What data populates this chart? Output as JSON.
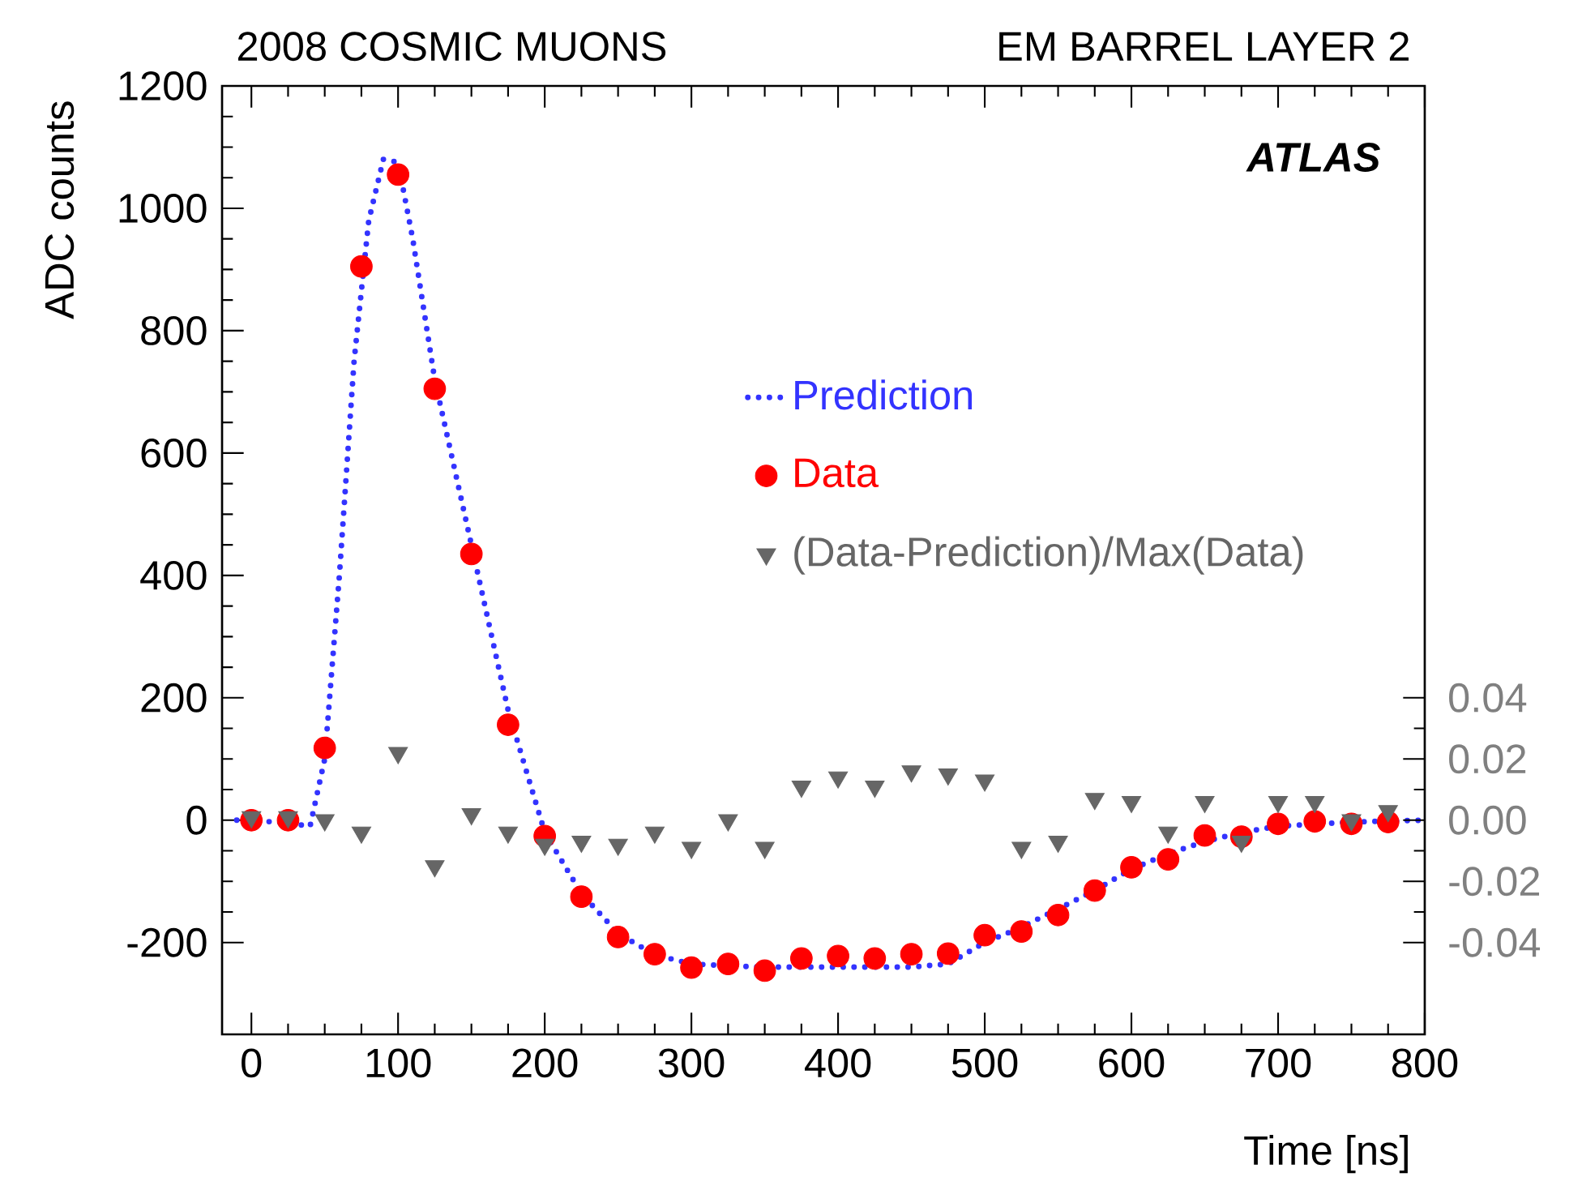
{
  "chart_data": {
    "type": "scatter",
    "title": "2008 COSMIC MUONS",
    "subtitle": "EM BARREL LAYER 2",
    "xlabel": "Time [ns]",
    "ylabel": "ADC counts",
    "annotations": [
      "ATLAS"
    ],
    "xlim": [
      -20,
      800
    ],
    "xticks": [
      0,
      100,
      200,
      300,
      400,
      500,
      600,
      700,
      800
    ],
    "ylim": [
      -350,
      1200
    ],
    "yticks": [
      -200,
      0,
      200,
      400,
      600,
      800,
      1000,
      1200
    ],
    "y2lim": [
      -0.07,
      0.24
    ],
    "y2ticks": [
      -0.04,
      -0.02,
      {
        "value": 0,
        "label": "0.00"
      },
      0.02,
      0.04
    ],
    "legend": "top right",
    "series": [
      {
        "name": "Prediction",
        "type": "line",
        "color": "#3333ff",
        "line_style": "dotted",
        "marker": "none",
        "x": [
          -10,
          0,
          25,
          40,
          50,
          60,
          70,
          80,
          90,
          100,
          110,
          125,
          150,
          175,
          200,
          225,
          250,
          275,
          300,
          325,
          350,
          400,
          450,
          475,
          500,
          525,
          550,
          575,
          600,
          625,
          650,
          675,
          700,
          750,
          800
        ],
        "values": [
          0,
          0,
          -5,
          -10,
          100,
          400,
          750,
          980,
          1080,
          1075,
          950,
          720,
          450,
          180,
          -20,
          -120,
          -185,
          -220,
          -235,
          -238,
          -240,
          -240,
          -240,
          -235,
          -200,
          -175,
          -145,
          -115,
          -80,
          -55,
          -35,
          -20,
          -10,
          -3,
          0
        ]
      },
      {
        "name": "Data",
        "color": "#ff0000",
        "marker": "circle",
        "x": [
          0,
          25,
          50,
          75,
          100,
          125,
          150,
          175,
          200,
          225,
          250,
          275,
          300,
          325,
          350,
          375,
          400,
          425,
          450,
          475,
          500,
          525,
          550,
          575,
          600,
          625,
          650,
          675,
          700,
          725,
          750,
          775
        ],
        "values": [
          0,
          0,
          118,
          905,
          1055,
          705,
          435,
          156,
          -26,
          -125,
          -191,
          -219,
          -241,
          -235,
          -246,
          -226,
          -222,
          -226,
          -219,
          -218,
          -188,
          -182,
          -155,
          -115,
          -77,
          -64,
          -25,
          -27,
          -6,
          -2,
          -6,
          -3
        ]
      },
      {
        "name": "(Data-Prediction)/Max(Data)",
        "axis": "y2",
        "color": "#666666",
        "marker": "triangle",
        "x": [
          0,
          25,
          50,
          75,
          100,
          125,
          150,
          175,
          200,
          225,
          250,
          275,
          300,
          325,
          350,
          375,
          400,
          425,
          450,
          475,
          500,
          525,
          550,
          575,
          600,
          625,
          650,
          675,
          700,
          725,
          750,
          775
        ],
        "values": [
          0.001,
          0.001,
          0.0,
          -0.004,
          0.022,
          -0.015,
          0.002,
          -0.004,
          -0.008,
          -0.007,
          -0.008,
          -0.004,
          -0.009,
          0.0,
          -0.009,
          0.011,
          0.014,
          0.011,
          0.016,
          0.015,
          0.013,
          -0.009,
          -0.007,
          0.007,
          0.006,
          -0.004,
          0.006,
          -0.007,
          0.006,
          0.006,
          0.0,
          0.003
        ]
      }
    ]
  }
}
